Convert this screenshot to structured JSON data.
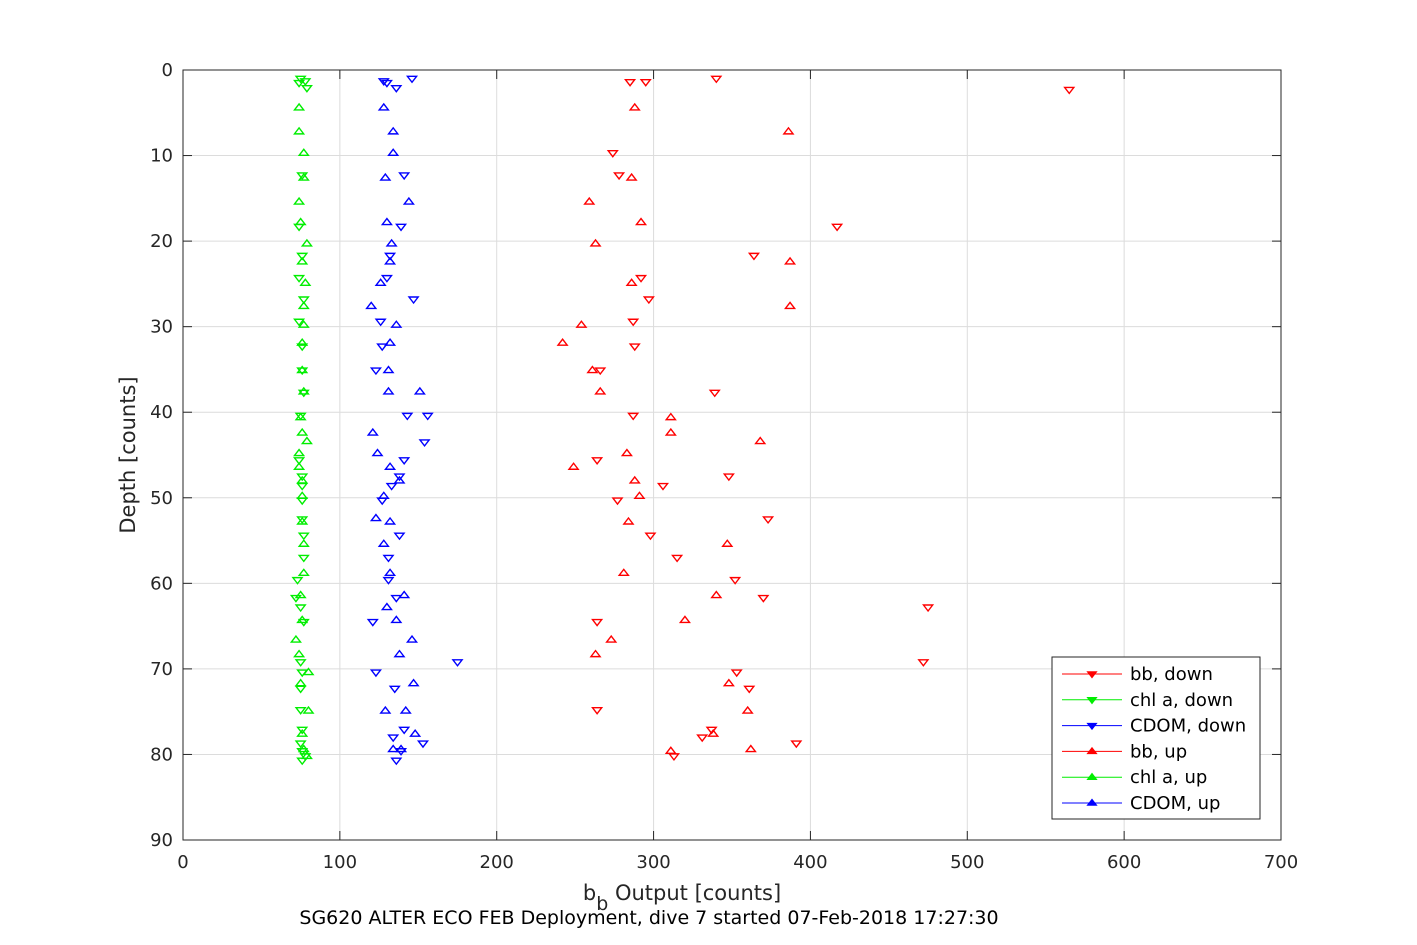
{
  "chart_data": {
    "type": "scatter",
    "caption": "SG620 ALTER ECO FEB Deployment, dive 7 started 07-Feb-2018 17:27:30",
    "xlabel_main": "b",
    "xlabel_sub": "b",
    "xlabel_rest": " Output [counts]",
    "ylabel": "Depth [counts]",
    "xlim": [
      0,
      700
    ],
    "ylim": [
      0,
      90
    ],
    "y_reversed": true,
    "xticks": [
      0,
      100,
      200,
      300,
      400,
      500,
      600,
      700
    ],
    "yticks": [
      0,
      10,
      20,
      30,
      40,
      50,
      60,
      70,
      80,
      90
    ],
    "grid": true,
    "legend_position": "bottom-right",
    "series": [
      {
        "name": "bb, down",
        "color": "#ff0000",
        "marker": "triangle-down",
        "points": [
          [
            340,
            1
          ],
          [
            295,
            1.4
          ],
          [
            285,
            1.4
          ],
          [
            565,
            2.3
          ],
          [
            274,
            9.7
          ],
          [
            278,
            12.3
          ],
          [
            417,
            18.3
          ],
          [
            364,
            21.7
          ],
          [
            292,
            24.3
          ],
          [
            297,
            26.8
          ],
          [
            287,
            29.4
          ],
          [
            288,
            32.3
          ],
          [
            266,
            35.1
          ],
          [
            339,
            37.7
          ],
          [
            287,
            40.4
          ],
          [
            264,
            45.6
          ],
          [
            348,
            47.5
          ],
          [
            306,
            48.6
          ],
          [
            277,
            50.3
          ],
          [
            373,
            52.5
          ],
          [
            298,
            54.4
          ],
          [
            315,
            57
          ],
          [
            352,
            59.6
          ],
          [
            370,
            61.7
          ],
          [
            475,
            62.8
          ],
          [
            264,
            64.5
          ],
          [
            472,
            69.2
          ],
          [
            353,
            70.4
          ],
          [
            361,
            72.3
          ],
          [
            264,
            74.8
          ],
          [
            337,
            77.1
          ],
          [
            331,
            78
          ],
          [
            391,
            78.7
          ],
          [
            313,
            80.2
          ]
        ]
      },
      {
        "name": "chl a, down",
        "color": "#00ee00",
        "marker": "triangle-down",
        "points": [
          [
            75,
            1
          ],
          [
            78,
            1.3
          ],
          [
            74,
            1.5
          ],
          [
            79,
            2.1
          ],
          [
            76,
            12.3
          ],
          [
            74,
            18.3
          ],
          [
            76,
            21.7
          ],
          [
            74,
            24.3
          ],
          [
            77,
            26.8
          ],
          [
            74,
            29.4
          ],
          [
            76,
            32.3
          ],
          [
            76,
            35.1
          ],
          [
            77,
            37.7
          ],
          [
            75,
            40.4
          ],
          [
            74,
            45.6
          ],
          [
            76,
            47.5
          ],
          [
            76,
            48.6
          ],
          [
            76,
            50.3
          ],
          [
            76,
            52.5
          ],
          [
            77,
            54.4
          ],
          [
            77,
            57
          ],
          [
            73,
            59.6
          ],
          [
            72,
            61.7
          ],
          [
            75,
            62.8
          ],
          [
            77,
            64.5
          ],
          [
            75,
            69.2
          ],
          [
            76,
            70.4
          ],
          [
            75,
            72.3
          ],
          [
            75,
            74.8
          ],
          [
            76,
            77.1
          ],
          [
            75,
            78.7
          ],
          [
            76,
            79.6
          ],
          [
            78,
            80.2
          ],
          [
            76,
            80.7
          ]
        ]
      },
      {
        "name": "CDOM, down",
        "color": "#0000ff",
        "marker": "triangle-down",
        "points": [
          [
            146,
            1
          ],
          [
            128,
            1.3
          ],
          [
            130,
            1.5
          ],
          [
            136,
            2.1
          ],
          [
            141,
            12.3
          ],
          [
            139,
            18.3
          ],
          [
            132,
            21.7
          ],
          [
            130,
            24.3
          ],
          [
            147,
            26.8
          ],
          [
            126,
            29.4
          ],
          [
            127,
            32.3
          ],
          [
            123,
            35.1
          ],
          [
            143,
            40.4
          ],
          [
            156,
            40.4
          ],
          [
            154,
            43.5
          ],
          [
            141,
            45.6
          ],
          [
            138,
            47.5
          ],
          [
            133,
            48.6
          ],
          [
            127,
            50.3
          ],
          [
            138,
            54.4
          ],
          [
            131,
            57
          ],
          [
            131,
            59.6
          ],
          [
            136,
            61.7
          ],
          [
            121,
            64.5
          ],
          [
            175,
            69.2
          ],
          [
            123,
            70.4
          ],
          [
            135,
            72.3
          ],
          [
            141,
            77.1
          ],
          [
            134,
            78
          ],
          [
            153,
            78.7
          ],
          [
            139,
            79.6
          ],
          [
            136,
            80.7
          ]
        ]
      },
      {
        "name": "bb, up",
        "color": "#ff0000",
        "marker": "triangle-up",
        "points": [
          [
            288,
            4.4
          ],
          [
            386,
            7.2
          ],
          [
            286,
            12.6
          ],
          [
            259,
            15.4
          ],
          [
            292,
            17.8
          ],
          [
            263,
            20.3
          ],
          [
            387,
            22.4
          ],
          [
            286,
            24.9
          ],
          [
            387,
            27.6
          ],
          [
            254,
            29.8
          ],
          [
            242,
            31.9
          ],
          [
            261,
            35.1
          ],
          [
            266,
            37.6
          ],
          [
            311,
            40.6
          ],
          [
            311,
            42.4
          ],
          [
            368,
            43.4
          ],
          [
            283,
            44.8
          ],
          [
            249,
            46.4
          ],
          [
            288,
            48
          ],
          [
            291,
            49.8
          ],
          [
            284,
            52.8
          ],
          [
            347,
            55.4
          ],
          [
            281,
            58.8
          ],
          [
            340,
            61.4
          ],
          [
            320,
            64.3
          ],
          [
            273,
            66.6
          ],
          [
            263,
            68.3
          ],
          [
            348,
            71.7
          ],
          [
            360,
            74.9
          ],
          [
            338,
            77.6
          ],
          [
            362,
            79.4
          ],
          [
            311,
            79.6
          ]
        ]
      },
      {
        "name": "chl a, up",
        "color": "#00ee00",
        "marker": "triangle-up",
        "points": [
          [
            74,
            4.4
          ],
          [
            74,
            7.2
          ],
          [
            77,
            9.7
          ],
          [
            77,
            12.6
          ],
          [
            74,
            15.4
          ],
          [
            75,
            17.8
          ],
          [
            79,
            20.3
          ],
          [
            76,
            22.4
          ],
          [
            78,
            24.9
          ],
          [
            77,
            27.6
          ],
          [
            77,
            29.8
          ],
          [
            76,
            31.9
          ],
          [
            76,
            35.1
          ],
          [
            77,
            37.6
          ],
          [
            75,
            40.6
          ],
          [
            76,
            42.4
          ],
          [
            79,
            43.4
          ],
          [
            74,
            44.8
          ],
          [
            74,
            46.4
          ],
          [
            76,
            48
          ],
          [
            76,
            49.8
          ],
          [
            76,
            52.8
          ],
          [
            77,
            55.4
          ],
          [
            77,
            58.8
          ],
          [
            75,
            61.4
          ],
          [
            76,
            64.3
          ],
          [
            72,
            66.6
          ],
          [
            74,
            68.3
          ],
          [
            80,
            70.4
          ],
          [
            75,
            71.7
          ],
          [
            80,
            74.9
          ],
          [
            76,
            77.6
          ],
          [
            77,
            79.4
          ],
          [
            79,
            80.2
          ]
        ]
      },
      {
        "name": "CDOM, up",
        "color": "#0000ff",
        "marker": "triangle-up",
        "points": [
          [
            128,
            4.4
          ],
          [
            134,
            7.2
          ],
          [
            134,
            9.7
          ],
          [
            129,
            12.6
          ],
          [
            144,
            15.4
          ],
          [
            130,
            17.8
          ],
          [
            133,
            20.3
          ],
          [
            132,
            22.4
          ],
          [
            126,
            24.9
          ],
          [
            120,
            27.6
          ],
          [
            136,
            29.8
          ],
          [
            132,
            31.9
          ],
          [
            131,
            35.1
          ],
          [
            151,
            37.6
          ],
          [
            131,
            37.6
          ],
          [
            121,
            42.4
          ],
          [
            124,
            44.8
          ],
          [
            132,
            46.4
          ],
          [
            138,
            48
          ],
          [
            128,
            49.8
          ],
          [
            123,
            52.4
          ],
          [
            132,
            52.8
          ],
          [
            128,
            55.4
          ],
          [
            132,
            58.8
          ],
          [
            141,
            61.4
          ],
          [
            130,
            62.8
          ],
          [
            136,
            64.3
          ],
          [
            146,
            66.6
          ],
          [
            138,
            68.3
          ],
          [
            147,
            71.7
          ],
          [
            129,
            74.9
          ],
          [
            142,
            74.9
          ],
          [
            148,
            77.6
          ],
          [
            134,
            79.4
          ],
          [
            139,
            79.4
          ]
        ]
      }
    ]
  }
}
